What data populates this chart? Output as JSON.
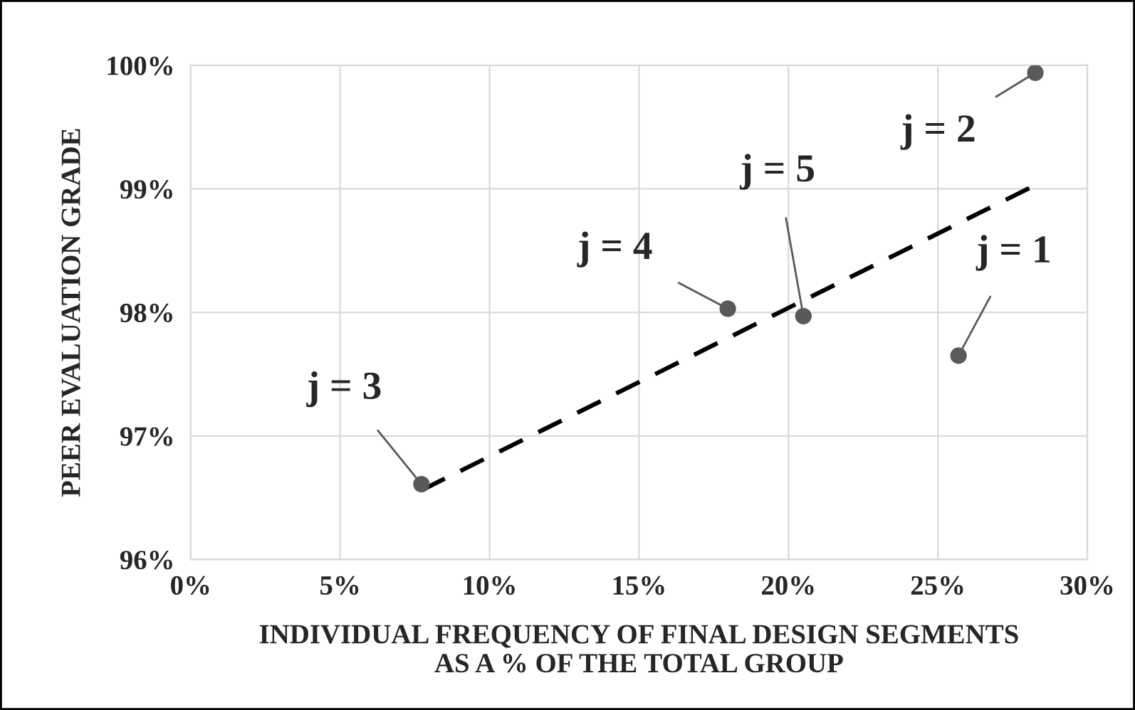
{
  "chart_data": {
    "type": "scatter",
    "xlabel": "INDIVIDUAL FREQUENCY OF FINAL DESIGN SEGMENTS\nAS A % OF THE TOTAL GROUP",
    "ylabel": "PEER EVALUATION GRADE",
    "series": [
      {
        "color": "#595959",
        "x": [
          25.69,
          28.26,
          7.72,
          17.97,
          20.5
        ],
        "values": [
          97.65,
          99.94,
          96.61,
          98.03,
          97.97
        ]
      },
      {
        "type": "line",
        "color": "#000000",
        "line_style": "dashed",
        "marker": "none",
        "x": [
          7.72,
          28.26
        ],
        "values": [
          96.56,
          99.03
        ]
      }
    ],
    "marker": "circle",
    "xlim": [
      0,
      30
    ],
    "xticks": [
      {
        "value": 0,
        "label": "0%"
      },
      {
        "value": 5,
        "label": "5%"
      },
      {
        "value": 10,
        "label": "10%"
      },
      {
        "value": 15,
        "label": "15%"
      },
      {
        "value": 20,
        "label": "20%"
      },
      {
        "value": 25,
        "label": "25%"
      },
      {
        "value": 30,
        "label": "30%"
      }
    ],
    "ylim": [
      96,
      100
    ],
    "yticks": [
      {
        "value": 96,
        "label": "96%"
      },
      {
        "value": 97,
        "label": "97%"
      },
      {
        "value": 98,
        "label": "98%"
      },
      {
        "value": 99,
        "label": "99%"
      },
      {
        "value": 100,
        "label": "100%"
      }
    ],
    "grid": true,
    "legend": false,
    "annotations": [
      {
        "text": "j = 1",
        "x": 25.69,
        "y": 97.65
      },
      {
        "text": "j = 2",
        "x": 28.26,
        "y": 99.94
      },
      {
        "text": "j = 3",
        "x": 7.72,
        "y": 96.61
      },
      {
        "text": "j = 4",
        "x": 17.97,
        "y": 98.03
      },
      {
        "text": "j = 5",
        "x": 20.5,
        "y": 97.97
      }
    ]
  }
}
